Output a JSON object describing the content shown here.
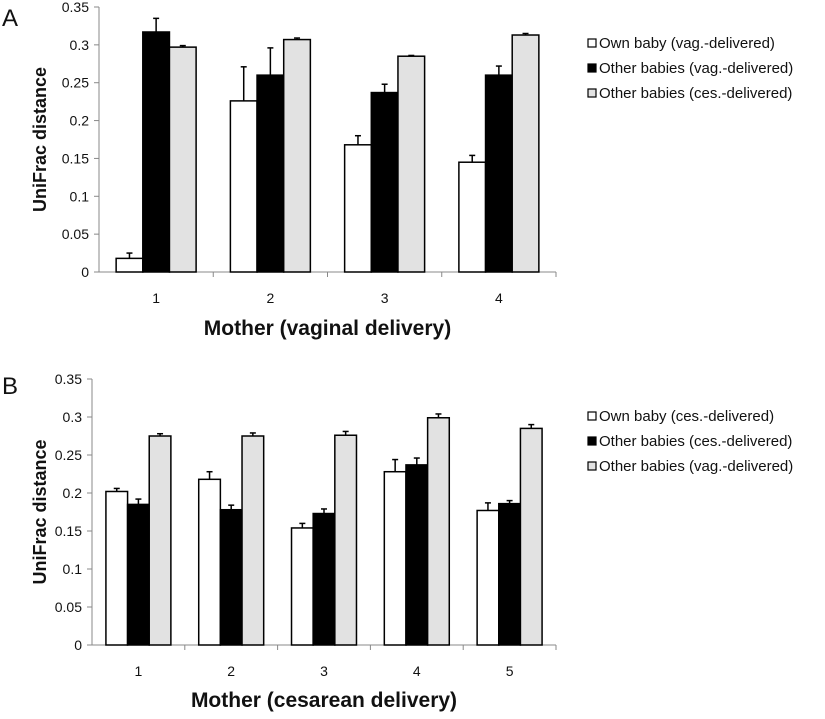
{
  "chart_data": [
    {
      "type": "bar",
      "panel_label": "A",
      "xlabel": "Mother (vaginal delivery)",
      "ylabel": "UniFrac distance",
      "ylim": [
        0,
        0.35
      ],
      "yticks": [
        "0",
        "0.05",
        "0.1",
        "0.15",
        "0.2",
        "0.25",
        "0.3",
        "0.35"
      ],
      "categories": [
        "1",
        "2",
        "3",
        "4"
      ],
      "legend_position": "right",
      "grid": false,
      "series": [
        {
          "name": "Own baby (vag.-delivered)",
          "color": "#ffffff",
          "values": [
            0.018,
            0.226,
            0.168,
            0.145
          ],
          "errors": [
            0.007,
            0.045,
            0.012,
            0.009
          ]
        },
        {
          "name": "Other babies (vag.-delivered)",
          "color": "#000000",
          "values": [
            0.317,
            0.26,
            0.237,
            0.26
          ],
          "errors": [
            0.018,
            0.036,
            0.011,
            0.012
          ]
        },
        {
          "name": "Other babies (ces.-delivered)",
          "color": "#e2e2e2",
          "values": [
            0.297,
            0.307,
            0.285,
            0.313
          ],
          "errors": [
            0.002,
            0.002,
            0.001,
            0.002
          ]
        }
      ]
    },
    {
      "type": "bar",
      "panel_label": "B",
      "xlabel": "Mother (cesarean delivery)",
      "ylabel": "UniFrac distance",
      "ylim": [
        0,
        0.35
      ],
      "yticks": [
        "0",
        "0.05",
        "0.1",
        "0.15",
        "0.2",
        "0.25",
        "0.3",
        "0.35"
      ],
      "categories": [
        "1",
        "2",
        "3",
        "4",
        "5"
      ],
      "legend_position": "right",
      "grid": false,
      "series": [
        {
          "name": "Own baby (ces.-delivered)",
          "color": "#ffffff",
          "values": [
            0.202,
            0.218,
            0.154,
            0.228,
            0.177
          ],
          "errors": [
            0.004,
            0.01,
            0.006,
            0.016,
            0.01
          ]
        },
        {
          "name": "Other babies (ces.-delivered)",
          "color": "#000000",
          "values": [
            0.185,
            0.178,
            0.173,
            0.237,
            0.186
          ],
          "errors": [
            0.007,
            0.006,
            0.006,
            0.009,
            0.004
          ]
        },
        {
          "name": "Other babies (vag.-delivered)",
          "color": "#e2e2e2",
          "values": [
            0.275,
            0.275,
            0.276,
            0.299,
            0.285
          ],
          "errors": [
            0.003,
            0.004,
            0.005,
            0.005,
            0.005
          ]
        }
      ]
    }
  ]
}
